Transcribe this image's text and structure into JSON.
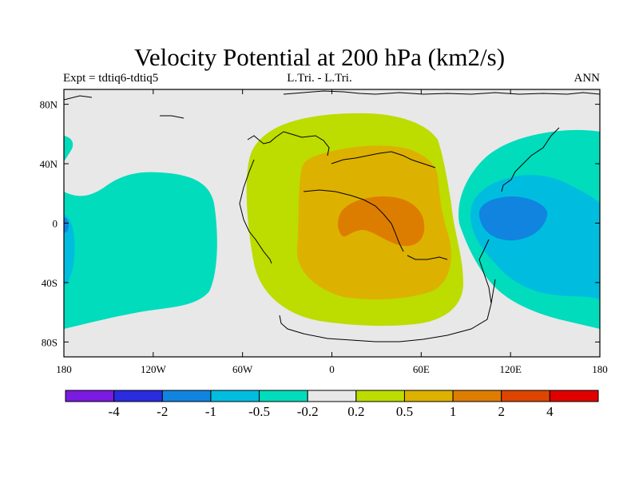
{
  "chart_data": {
    "type": "contour-map",
    "title": "Velocity Potential at 200 hPa (km2/s)",
    "left_label": "Expt = tdtiq6-tdtiq5",
    "center_label": "L.Tri. - L.Tri.",
    "right_label": "ANN",
    "x_ticks": [
      "180",
      "120W",
      "60W",
      "0",
      "60E",
      "120E",
      "180"
    ],
    "x_tick_values": [
      -180,
      -120,
      -60,
      0,
      60,
      120,
      180
    ],
    "y_ticks": [
      "80N",
      "40N",
      "0",
      "40S",
      "80S"
    ],
    "y_tick_values": [
      80,
      40,
      0,
      -40,
      -80
    ],
    "xlim": [
      -180,
      180
    ],
    "ylim": [
      -90,
      90
    ],
    "levels": [
      "-4",
      "-2",
      "-1",
      "-0.5",
      "-0.2",
      "0.2",
      "0.5",
      "1",
      "2",
      "4"
    ],
    "colorbar_colors": [
      "#7b1ae0",
      "#2b2be0",
      "#1184e0",
      "#00bde0",
      "#00dcbc",
      "#e8e8e8",
      "#bddc00",
      "#ddb100",
      "#dd7d00",
      "#dd4500",
      "#e00000"
    ],
    "background_color": "#e8e8e8"
  }
}
